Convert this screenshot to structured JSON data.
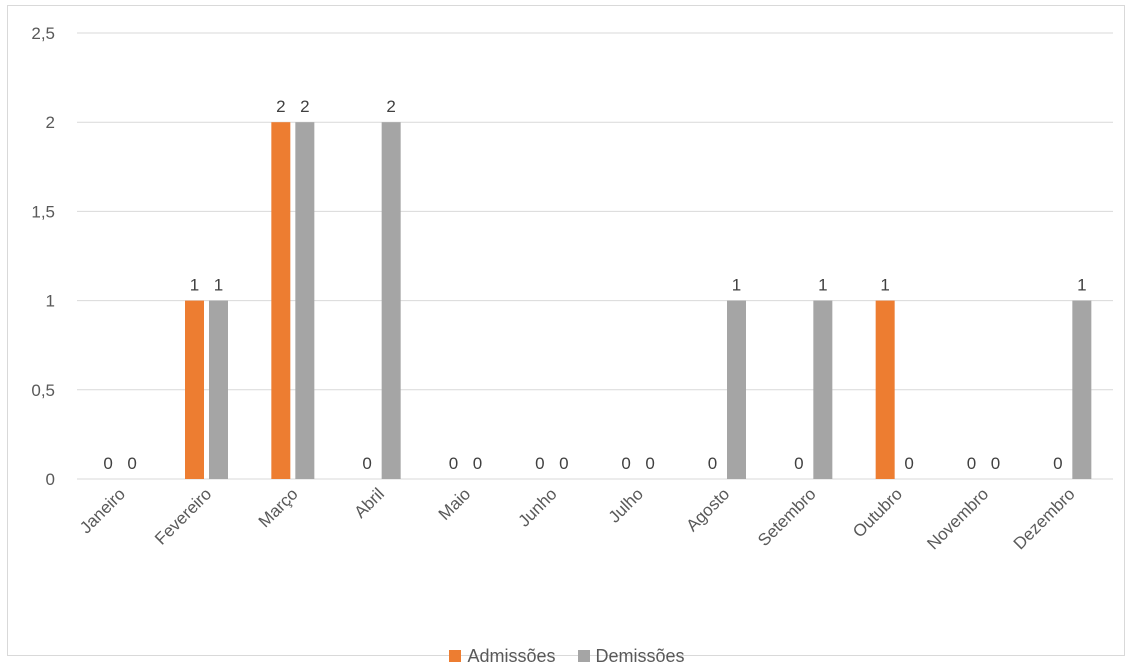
{
  "chart_data": {
    "type": "bar",
    "title": "",
    "xlabel": "",
    "ylabel": "",
    "categories": [
      "Janeiro",
      "Fevereiro",
      "Março",
      "Abril",
      "Maio",
      "Junho",
      "Julho",
      "Agosto",
      "Setembro",
      "Outubro",
      "Novembro",
      "Dezembro"
    ],
    "series": [
      {
        "name": "Admissões",
        "color": "#ed7d31",
        "values": [
          0,
          1,
          2,
          0,
          0,
          0,
          0,
          0,
          0,
          1,
          0,
          0
        ]
      },
      {
        "name": "Demissões",
        "color": "#a5a5a5",
        "values": [
          0,
          1,
          2,
          2,
          0,
          0,
          0,
          1,
          1,
          0,
          0,
          1
        ]
      }
    ],
    "ylim": [
      0,
      2.5
    ],
    "yticks": [
      {
        "value": 0,
        "label": "0"
      },
      {
        "value": 0.5,
        "label": "0,5"
      },
      {
        "value": 1,
        "label": "1"
      },
      {
        "value": 1.5,
        "label": "1,5"
      },
      {
        "value": 2,
        "label": "2"
      },
      {
        "value": 2.5,
        "label": "2,5"
      }
    ],
    "grid": true,
    "legend_position": "bottom",
    "data_labels": true
  }
}
